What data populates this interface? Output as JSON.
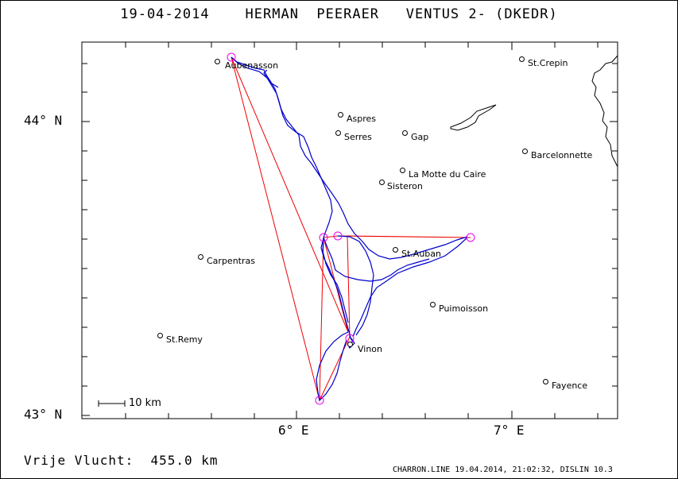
{
  "title": "19-04-2014    HERMAN  PEERAER   VENTUS 2- (DKEDR)",
  "footer": {
    "distance": "Vrije Vlucht:  455.0 km",
    "credit": "CHARRON.LINE 19.04.2014, 21:02:32, DISLIN 10.3"
  },
  "axes": {
    "lat_top": "44° N",
    "lat_bottom": "43° N",
    "lon_left": "6° E",
    "lon_right": "7° E"
  },
  "scale_label": "10 km",
  "towns": [
    {
      "name": "Aubenasson"
    },
    {
      "name": "St.Crepin"
    },
    {
      "name": "Aspres"
    },
    {
      "name": "Serres"
    },
    {
      "name": "Gap"
    },
    {
      "name": "Barcelonnette"
    },
    {
      "name": "La Motte du Caire"
    },
    {
      "name": "Sisteron"
    },
    {
      "name": "St.Auban"
    },
    {
      "name": "Carpentras"
    },
    {
      "name": "Puimoisson"
    },
    {
      "name": "St.Remy"
    },
    {
      "name": "Vinon"
    },
    {
      "name": "Fayence"
    }
  ],
  "colors": {
    "track": "#0000cc",
    "task": "#ee0000",
    "turnpoint": "#ee00ee",
    "coast": "#000000"
  }
}
